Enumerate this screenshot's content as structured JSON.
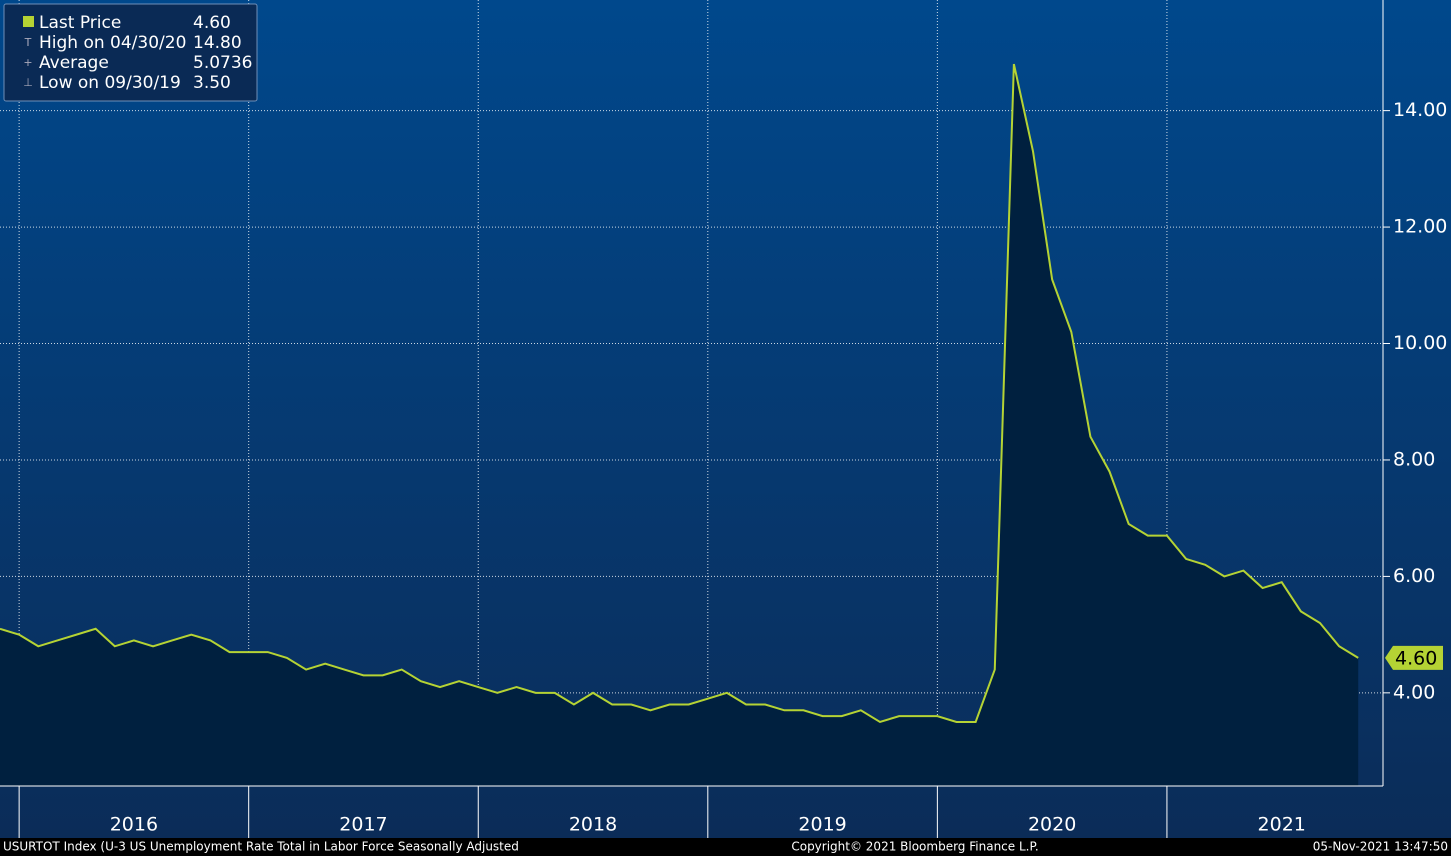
{
  "chart_data": {
    "type": "area",
    "x": [
      "2015-11",
      "2015-12",
      "2016-01",
      "2016-02",
      "2016-03",
      "2016-04",
      "2016-05",
      "2016-06",
      "2016-07",
      "2016-08",
      "2016-09",
      "2016-10",
      "2016-11",
      "2016-12",
      "2017-01",
      "2017-02",
      "2017-03",
      "2017-04",
      "2017-05",
      "2017-06",
      "2017-07",
      "2017-08",
      "2017-09",
      "2017-10",
      "2017-11",
      "2017-12",
      "2018-01",
      "2018-02",
      "2018-03",
      "2018-04",
      "2018-05",
      "2018-06",
      "2018-07",
      "2018-08",
      "2018-09",
      "2018-10",
      "2018-11",
      "2018-12",
      "2019-01",
      "2019-02",
      "2019-03",
      "2019-04",
      "2019-05",
      "2019-06",
      "2019-07",
      "2019-08",
      "2019-09",
      "2019-10",
      "2019-11",
      "2019-12",
      "2020-01",
      "2020-02",
      "2020-03",
      "2020-04",
      "2020-05",
      "2020-06",
      "2020-07",
      "2020-08",
      "2020-09",
      "2020-10",
      "2020-11",
      "2020-12",
      "2021-01",
      "2021-02",
      "2021-03",
      "2021-04",
      "2021-05",
      "2021-06",
      "2021-07",
      "2021-08",
      "2021-09",
      "2021-10"
    ],
    "series": [
      {
        "name": "Last Price",
        "color": "#b5d334",
        "values": [
          5.1,
          5.0,
          4.8,
          4.9,
          5.0,
          5.1,
          4.8,
          4.9,
          4.8,
          4.9,
          5.0,
          4.9,
          4.7,
          4.7,
          4.7,
          4.6,
          4.4,
          4.5,
          4.4,
          4.3,
          4.3,
          4.4,
          4.2,
          4.1,
          4.2,
          4.1,
          4.0,
          4.1,
          4.0,
          4.0,
          3.8,
          4.0,
          3.8,
          3.8,
          3.7,
          3.8,
          3.8,
          3.9,
          4.0,
          3.8,
          3.8,
          3.7,
          3.7,
          3.6,
          3.6,
          3.7,
          3.5,
          3.6,
          3.6,
          3.6,
          3.5,
          3.5,
          4.4,
          14.8,
          13.3,
          11.1,
          10.2,
          8.4,
          7.8,
          6.9,
          6.7,
          6.7,
          6.3,
          6.2,
          6.0,
          6.1,
          5.8,
          5.9,
          5.4,
          5.2,
          4.8,
          4.6
        ]
      }
    ],
    "ylim": [
      2.4,
      15.9
    ],
    "yticks": [
      {
        "value": 4,
        "label": "4.00"
      },
      {
        "value": 6,
        "label": "6.00"
      },
      {
        "value": 8,
        "label": "8.00"
      },
      {
        "value": 10,
        "label": "10.00"
      },
      {
        "value": 12,
        "label": "12.00"
      },
      {
        "value": 14,
        "label": "14.00"
      }
    ],
    "xtick_labels": [
      "2016",
      "2017",
      "2018",
      "2019",
      "2020",
      "2021"
    ],
    "grid": true,
    "legend": [
      {
        "label": "Last Price",
        "value": "4.60"
      },
      {
        "label": "High on 04/30/20",
        "value": "14.80"
      },
      {
        "label": "Average",
        "value": "5.0736"
      },
      {
        "label": "Low on 09/30/19",
        "value": "3.50"
      }
    ],
    "footer": {
      "left": "USURTOT Index (U-3 US Unemployment Rate Total in Labor Force Seasonally Adjusted",
      "center": "Copyright© 2021 Bloomberg Finance L.P.",
      "right": "05-Nov-2021 13:47:50"
    }
  }
}
